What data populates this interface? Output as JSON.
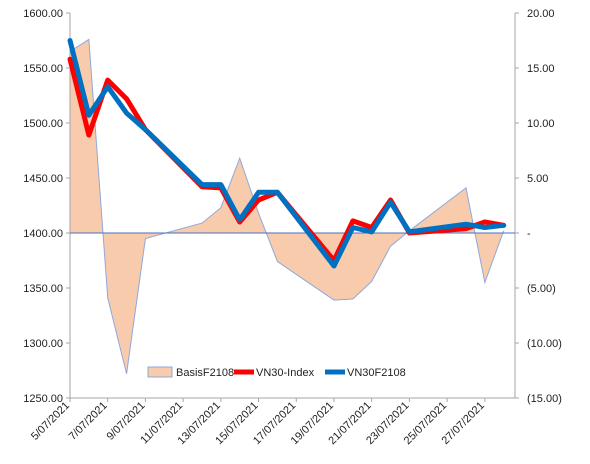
{
  "chart_data": {
    "type": "line",
    "x": [
      "5/07/2021",
      "6/07/2021",
      "7/07/2021",
      "8/07/2021",
      "9/07/2021",
      "12/07/2021",
      "13/07/2021",
      "14/07/2021",
      "15/07/2021",
      "16/07/2021",
      "19/07/2021",
      "20/07/2021",
      "21/07/2021",
      "22/07/2021",
      "23/07/2021",
      "26/07/2021",
      "27/07/2021",
      "28/07/2021"
    ],
    "x_tick_labels": [
      "5/07/2021",
      "7/07/2021",
      "9/07/2021",
      "11/07/2021",
      "13/07/2021",
      "15/07/2021",
      "17/07/2021",
      "19/07/2021",
      "21/07/2021",
      "23/07/2021",
      "25/07/2021",
      "27/07/2021"
    ],
    "y_left": {
      "range": [
        1250,
        1600
      ],
      "ticks": [
        "1250.00",
        "1300.00",
        "1350.00",
        "1400.00",
        "1450.00",
        "1500.00",
        "1550.00",
        "1600.00"
      ]
    },
    "y_right": {
      "range": [
        -15,
        20
      ],
      "ticks": [
        "(15.00)",
        "(10.00)",
        "(5.00)",
        "-",
        "5.00",
        "10.00",
        "15.00",
        "20.00"
      ]
    },
    "series": [
      {
        "name": "BasisF2108",
        "type": "area",
        "axis": "right",
        "color": "#F8CBAD",
        "edge": "#8EA9DB",
        "values": [
          16.5,
          17.6,
          -5.9,
          -12.8,
          -0.5,
          0.9,
          2.3,
          6.8,
          1.8,
          -2.6,
          -6.1,
          -6.0,
          -4.4,
          -1.2,
          0.2,
          4.1,
          -4.5,
          0.2
        ]
      },
      {
        "name": "VN30-Index",
        "type": "line",
        "axis": "left",
        "color": "#FF0000",
        "values": [
          1558,
          1489,
          1539,
          1522,
          1494,
          1442,
          1441,
          1410,
          1430,
          1437,
          1375,
          1411,
          1405,
          1430,
          1400,
          1404,
          1410,
          1407
        ]
      },
      {
        "name": "VN30F2108",
        "type": "line",
        "axis": "left",
        "color": "#0070C0",
        "values": [
          1575,
          1507,
          1533,
          1509,
          1494,
          1444,
          1444,
          1412,
          1437,
          1437,
          1370,
          1405,
          1401,
          1428,
          1401,
          1408,
          1405,
          1407
        ]
      }
    ],
    "legend_position": "bottom-inside",
    "grid": false,
    "title": "",
    "xlabel": "",
    "ylabel": ""
  }
}
